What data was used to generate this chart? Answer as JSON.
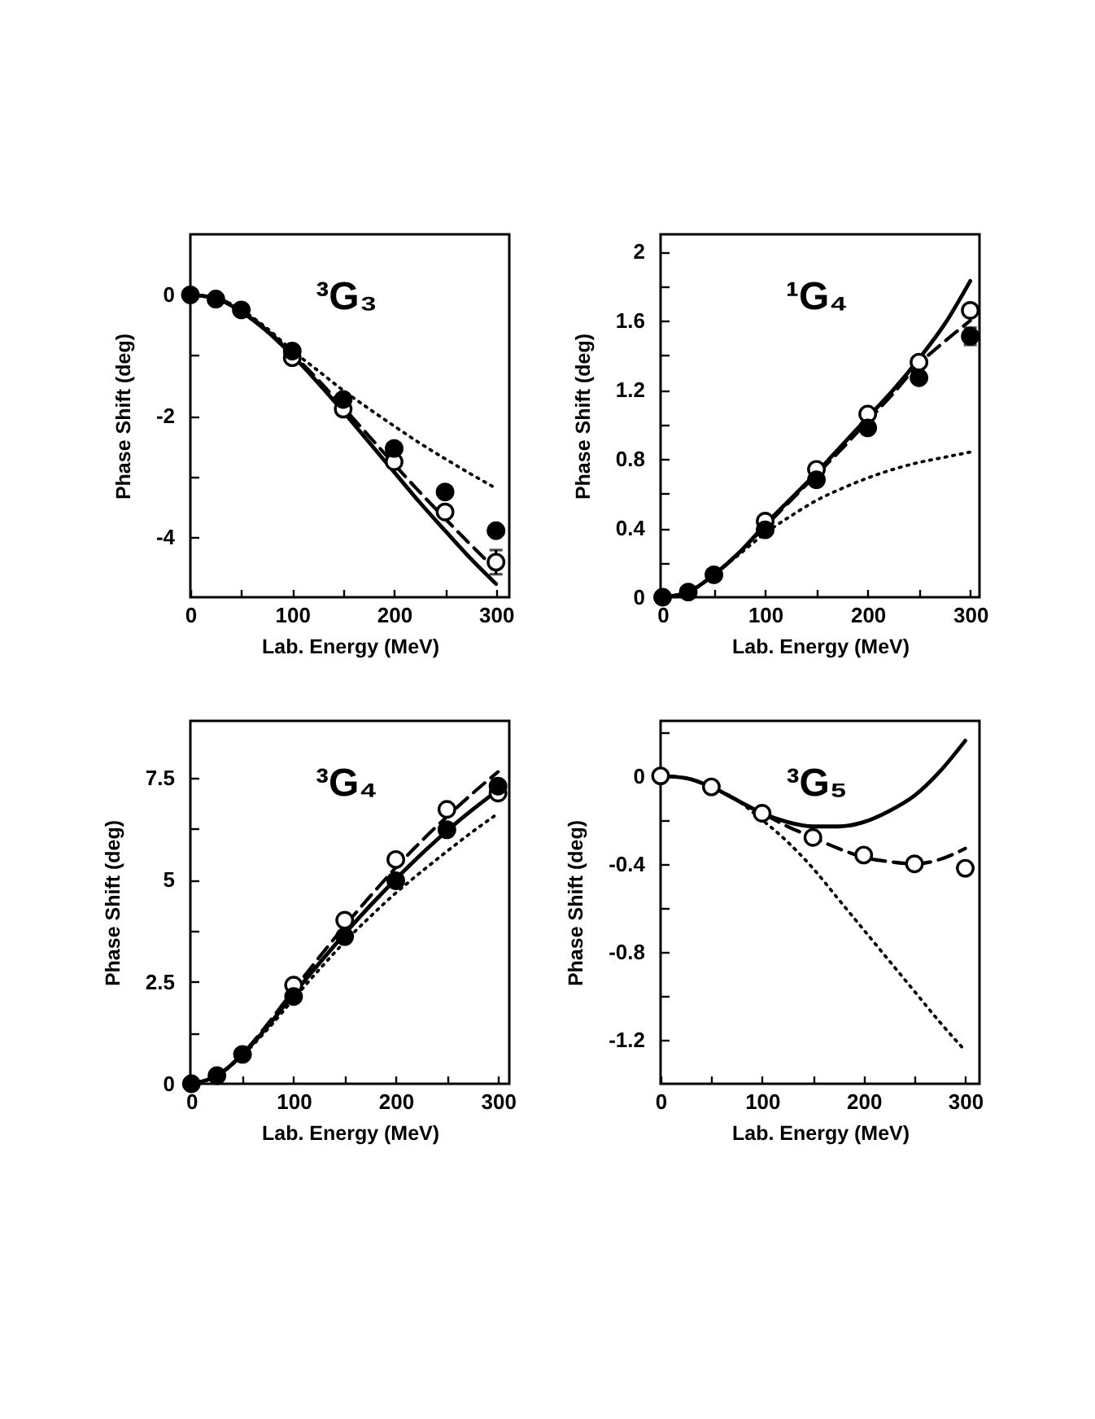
{
  "chart_data": [
    {
      "type": "line",
      "title": "³G₃",
      "xlabel": "Lab. Energy (MeV)",
      "ylabel": "Phase Shift (deg)",
      "xlim": [
        0,
        313
      ],
      "xticks": [
        0,
        {
          "value": 50,
          "label": null
        },
        100,
        {
          "value": 150,
          "label": null
        },
        200,
        {
          "value": 250,
          "label": null
        },
        300
      ],
      "ylim": [
        -5,
        1
      ],
      "yticks": [
        -4,
        {
          "value": -3,
          "label": null
        },
        -2,
        {
          "value": -1,
          "label": null
        },
        0
      ],
      "series": [
        {
          "type": "line",
          "line_style": "solid",
          "color": "#000000",
          "x": [
            0,
            25,
            50,
            75,
            100,
            125,
            150,
            175,
            200,
            225,
            250,
            275,
            300
          ],
          "values": [
            0,
            -0.06,
            -0.28,
            -0.6,
            -1.0,
            -1.45,
            -1.93,
            -2.43,
            -2.93,
            -3.43,
            -3.9,
            -4.36,
            -4.78
          ]
        },
        {
          "type": "line",
          "line_style": "dashed",
          "color": "#000000",
          "x": [
            0,
            25,
            50,
            75,
            100,
            125,
            150,
            175,
            200,
            225,
            250,
            275,
            300
          ],
          "values": [
            0,
            -0.05,
            -0.26,
            -0.58,
            -0.97,
            -1.4,
            -1.86,
            -2.33,
            -2.8,
            -3.26,
            -3.7,
            -4.13,
            -4.55
          ]
        },
        {
          "type": "line",
          "line_style": "dotted",
          "color": "#000000",
          "x": [
            0,
            25,
            50,
            75,
            100,
            125,
            150,
            175,
            200,
            225,
            250,
            275,
            300
          ],
          "values": [
            0,
            -0.05,
            -0.25,
            -0.55,
            -0.92,
            -1.25,
            -1.58,
            -1.88,
            -2.17,
            -2.45,
            -2.71,
            -2.96,
            -3.2
          ]
        },
        {
          "type": "scatter",
          "marker": "circle",
          "color": "#ffffff",
          "x": [
            100,
            150,
            200,
            250,
            300
          ],
          "values": [
            -1.04,
            -1.89,
            -2.76,
            -3.59,
            -4.42
          ],
          "errors": [
            null,
            null,
            null,
            null,
            0.2
          ]
        },
        {
          "type": "scatter",
          "marker": "circle",
          "color": "#000000",
          "x": [
            0,
            25,
            50,
            100,
            150,
            200,
            250,
            300
          ],
          "values": [
            0,
            -0.07,
            -0.25,
            -0.93,
            -1.73,
            -2.54,
            -3.26,
            -3.9
          ]
        }
      ]
    },
    {
      "type": "line",
      "title": "¹G₄",
      "xlabel": "Lab. Energy (MeV)",
      "ylabel": "Phase Shift (deg)",
      "xlim": [
        -2,
        309
      ],
      "xticks": [
        0,
        {
          "value": 50,
          "label": null
        },
        100,
        {
          "value": 150,
          "label": null
        },
        200,
        {
          "value": 250,
          "label": null
        },
        300
      ],
      "ylim": [
        0,
        2.1
      ],
      "yticks": [
        0,
        {
          "value": 0.2,
          "label": null
        },
        0.4,
        {
          "value": 0.6,
          "label": null
        },
        0.8,
        {
          "value": 1.0,
          "label": null
        },
        1.2,
        {
          "value": 1.4,
          "label": null
        },
        1.6,
        {
          "value": 1.8,
          "label": null
        },
        2
      ],
      "series": [
        {
          "type": "line",
          "line_style": "solid",
          "color": "#000000",
          "x": [
            0,
            25,
            50,
            75,
            100,
            125,
            150,
            175,
            200,
            225,
            250,
            275,
            300
          ],
          "values": [
            0,
            0.03,
            0.13,
            0.26,
            0.42,
            0.57,
            0.72,
            0.88,
            1.04,
            1.2,
            1.38,
            1.58,
            1.83
          ]
        },
        {
          "type": "line",
          "line_style": "dashed",
          "color": "#000000",
          "x": [
            0,
            25,
            50,
            75,
            100,
            125,
            150,
            175,
            200,
            225,
            250,
            275,
            300
          ],
          "values": [
            0,
            0.03,
            0.13,
            0.26,
            0.41,
            0.56,
            0.71,
            0.86,
            1.02,
            1.18,
            1.35,
            1.48,
            1.6
          ]
        },
        {
          "type": "line",
          "line_style": "dotted",
          "color": "#000000",
          "x": [
            0,
            25,
            50,
            75,
            100,
            125,
            150,
            175,
            200,
            225,
            250,
            275,
            300
          ],
          "values": [
            0,
            0.03,
            0.13,
            0.25,
            0.37,
            0.47,
            0.56,
            0.63,
            0.69,
            0.74,
            0.78,
            0.81,
            0.84
          ]
        },
        {
          "type": "scatter",
          "marker": "circle",
          "color": "#ffffff",
          "x": [
            100,
            150,
            200,
            250,
            300
          ],
          "values": [
            0.44,
            0.74,
            1.06,
            1.36,
            1.66
          ]
        },
        {
          "type": "scatter",
          "marker": "circle",
          "color": "#000000",
          "x": [
            0,
            25,
            50,
            100,
            150,
            200,
            250,
            300
          ],
          "values": [
            0,
            0.03,
            0.13,
            0.39,
            0.68,
            0.98,
            1.27,
            1.51
          ],
          "errors": [
            null,
            null,
            null,
            null,
            null,
            null,
            null,
            0.05
          ]
        }
      ]
    },
    {
      "type": "line",
      "title": "³G₄",
      "xlabel": "Lab. Energy (MeV)",
      "ylabel": "Phase Shift (deg)",
      "xlim": [
        -1,
        311
      ],
      "xticks": [
        0,
        {
          "value": 50,
          "label": null
        },
        100,
        {
          "value": 150,
          "label": null
        },
        200,
        {
          "value": 250,
          "label": null
        },
        300
      ],
      "ylim": [
        0,
        8.9
      ],
      "yticks": [
        0,
        {
          "value": 1.25,
          "label": null
        },
        2.5,
        {
          "value": 3.75,
          "label": null
        },
        5,
        {
          "value": 6.25,
          "label": null
        },
        7.5
      ],
      "series": [
        {
          "type": "line",
          "line_style": "solid",
          "color": "#000000",
          "x": [
            0,
            25,
            50,
            75,
            100,
            125,
            150,
            175,
            200,
            225,
            250,
            275,
            300
          ],
          "values": [
            0,
            0.2,
            0.72,
            1.42,
            2.2,
            2.95,
            3.68,
            4.37,
            5.02,
            5.63,
            6.2,
            6.72,
            7.2
          ]
        },
        {
          "type": "line",
          "line_style": "dashed",
          "color": "#000000",
          "x": [
            0,
            25,
            50,
            75,
            100,
            125,
            150,
            175,
            200,
            225,
            250,
            275,
            300
          ],
          "values": [
            0,
            0.2,
            0.74,
            1.48,
            2.3,
            3.1,
            3.87,
            4.6,
            5.3,
            5.95,
            6.55,
            7.12,
            7.65
          ]
        },
        {
          "type": "line",
          "line_style": "dotted",
          "color": "#000000",
          "x": [
            0,
            25,
            50,
            75,
            100,
            125,
            150,
            175,
            200,
            225,
            250,
            275,
            300
          ],
          "values": [
            0,
            0.19,
            0.7,
            1.35,
            2.08,
            2.8,
            3.48,
            4.1,
            4.68,
            5.2,
            5.7,
            6.18,
            6.63
          ]
        },
        {
          "type": "scatter",
          "marker": "circle",
          "color": "#ffffff",
          "x": [
            100,
            150,
            200,
            250,
            300
          ],
          "values": [
            2.42,
            4.01,
            5.5,
            6.73,
            7.13
          ]
        },
        {
          "type": "scatter",
          "marker": "circle",
          "color": "#000000",
          "x": [
            0,
            25,
            50,
            100,
            150,
            200,
            250,
            300
          ],
          "values": [
            0,
            0.2,
            0.72,
            2.14,
            3.61,
            4.98,
            6.23,
            7.3
          ]
        }
      ]
    },
    {
      "type": "line",
      "title": "³G₅",
      "xlabel": "Lab. Energy (MeV)",
      "ylabel": "Phase Shift (deg)",
      "xlim": [
        0,
        314
      ],
      "xticks": [
        0,
        {
          "value": 50,
          "label": null
        },
        100,
        {
          "value": 150,
          "label": null
        },
        200,
        {
          "value": 250,
          "label": null
        },
        300
      ],
      "ylim": [
        -1.4,
        0.25
      ],
      "yticks": [
        {
          "value": 0.2,
          "label": null
        },
        0,
        {
          "value": -0.2,
          "label": null
        },
        -0.4,
        {
          "value": -0.6,
          "label": null
        },
        -0.8,
        {
          "value": -1.0,
          "label": null
        },
        -1.2
      ],
      "series": [
        {
          "type": "line",
          "line_style": "solid",
          "color": "#000000",
          "x": [
            0,
            25,
            50,
            75,
            100,
            125,
            150,
            175,
            200,
            225,
            250,
            275,
            300
          ],
          "values": [
            0,
            -0.01,
            -0.05,
            -0.11,
            -0.17,
            -0.21,
            -0.23,
            -0.23,
            -0.21,
            -0.16,
            -0.09,
            0.02,
            0.16
          ]
        },
        {
          "type": "line",
          "line_style": "dashed",
          "color": "#000000",
          "x": [
            0,
            25,
            50,
            75,
            100,
            125,
            150,
            175,
            200,
            225,
            250,
            275,
            300
          ],
          "values": [
            0,
            -0.01,
            -0.05,
            -0.11,
            -0.17,
            -0.23,
            -0.28,
            -0.33,
            -0.37,
            -0.39,
            -0.4,
            -0.38,
            -0.33
          ]
        },
        {
          "type": "line",
          "line_style": "dotted",
          "color": "#000000",
          "x": [
            0,
            25,
            50,
            75,
            100,
            125,
            150,
            175,
            200,
            225,
            250,
            275,
            300
          ],
          "values": [
            0,
            -0.01,
            -0.05,
            -0.11,
            -0.2,
            -0.3,
            -0.42,
            -0.56,
            -0.7,
            -0.84,
            -0.98,
            -1.12,
            -1.25
          ]
        },
        {
          "type": "scatter",
          "marker": "circle",
          "color": "#ffffff",
          "x": [
            0,
            50,
            100,
            150,
            200,
            250,
            300
          ],
          "values": [
            0,
            -0.05,
            -0.17,
            -0.28,
            -0.36,
            -0.4,
            -0.42
          ]
        }
      ]
    }
  ]
}
